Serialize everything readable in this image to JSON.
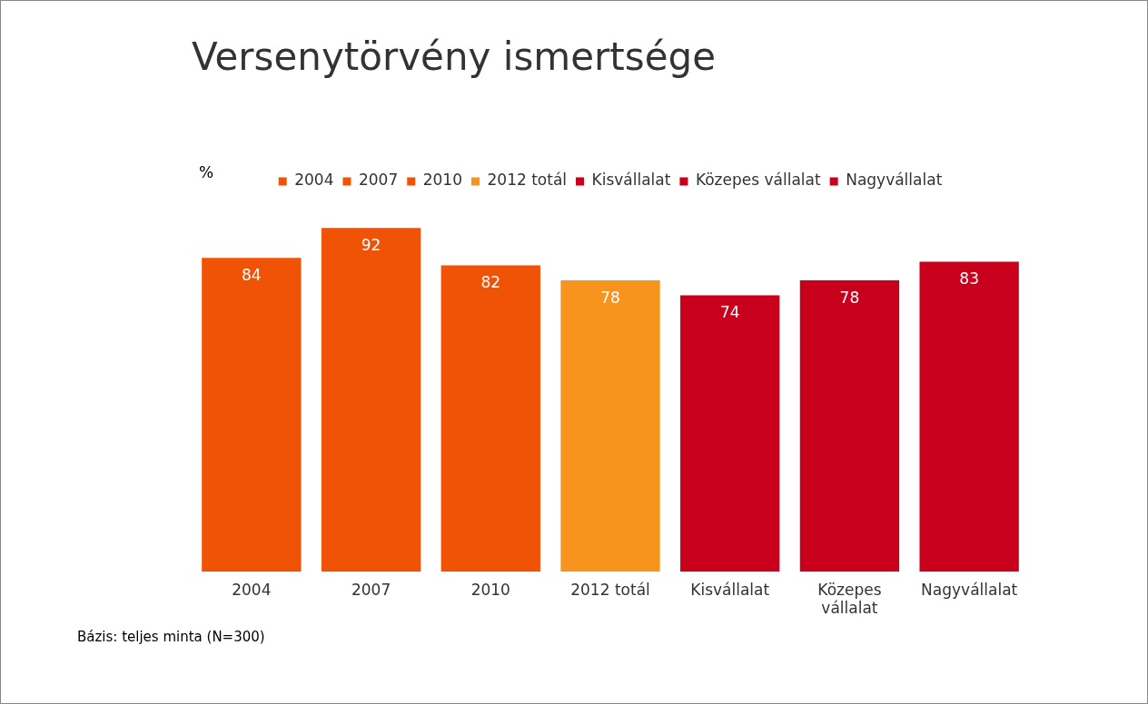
{
  "chart_data": {
    "type": "bar",
    "title": "Versenytörvény ismertsége",
    "ylabel": "%",
    "categories": [
      "2004",
      "2007",
      "2010",
      "2012 totál",
      "Kisvállalat",
      "Közepes vállalat",
      "Nagyvállalat"
    ],
    "series": [
      {
        "name": "2004",
        "color": "#f05206",
        "values": [
          84,
          null,
          null,
          null,
          null,
          null,
          null
        ]
      },
      {
        "name": "2007",
        "color": "#f05206",
        "values": [
          null,
          92,
          null,
          null,
          null,
          null,
          null
        ]
      },
      {
        "name": "2010",
        "color": "#f05206",
        "values": [
          null,
          null,
          82,
          null,
          null,
          null,
          null
        ]
      },
      {
        "name": "2012 totál",
        "color": "#f7941e",
        "values": [
          null,
          null,
          null,
          78,
          null,
          null,
          null
        ]
      },
      {
        "name": "Kisvállalat",
        "color": "#c8001c",
        "values": [
          null,
          null,
          null,
          null,
          74,
          null,
          null
        ]
      },
      {
        "name": "Közepes vállalat",
        "color": "#c8001c",
        "values": [
          null,
          null,
          null,
          null,
          null,
          78,
          null
        ]
      },
      {
        "name": "Nagyvállalat",
        "color": "#c8001c",
        "values": [
          null,
          null,
          null,
          null,
          null,
          null,
          83
        ]
      }
    ],
    "data_labels": true,
    "legend": "top",
    "annotations": [
      "Bázis: teljes minta (N=300)"
    ]
  }
}
